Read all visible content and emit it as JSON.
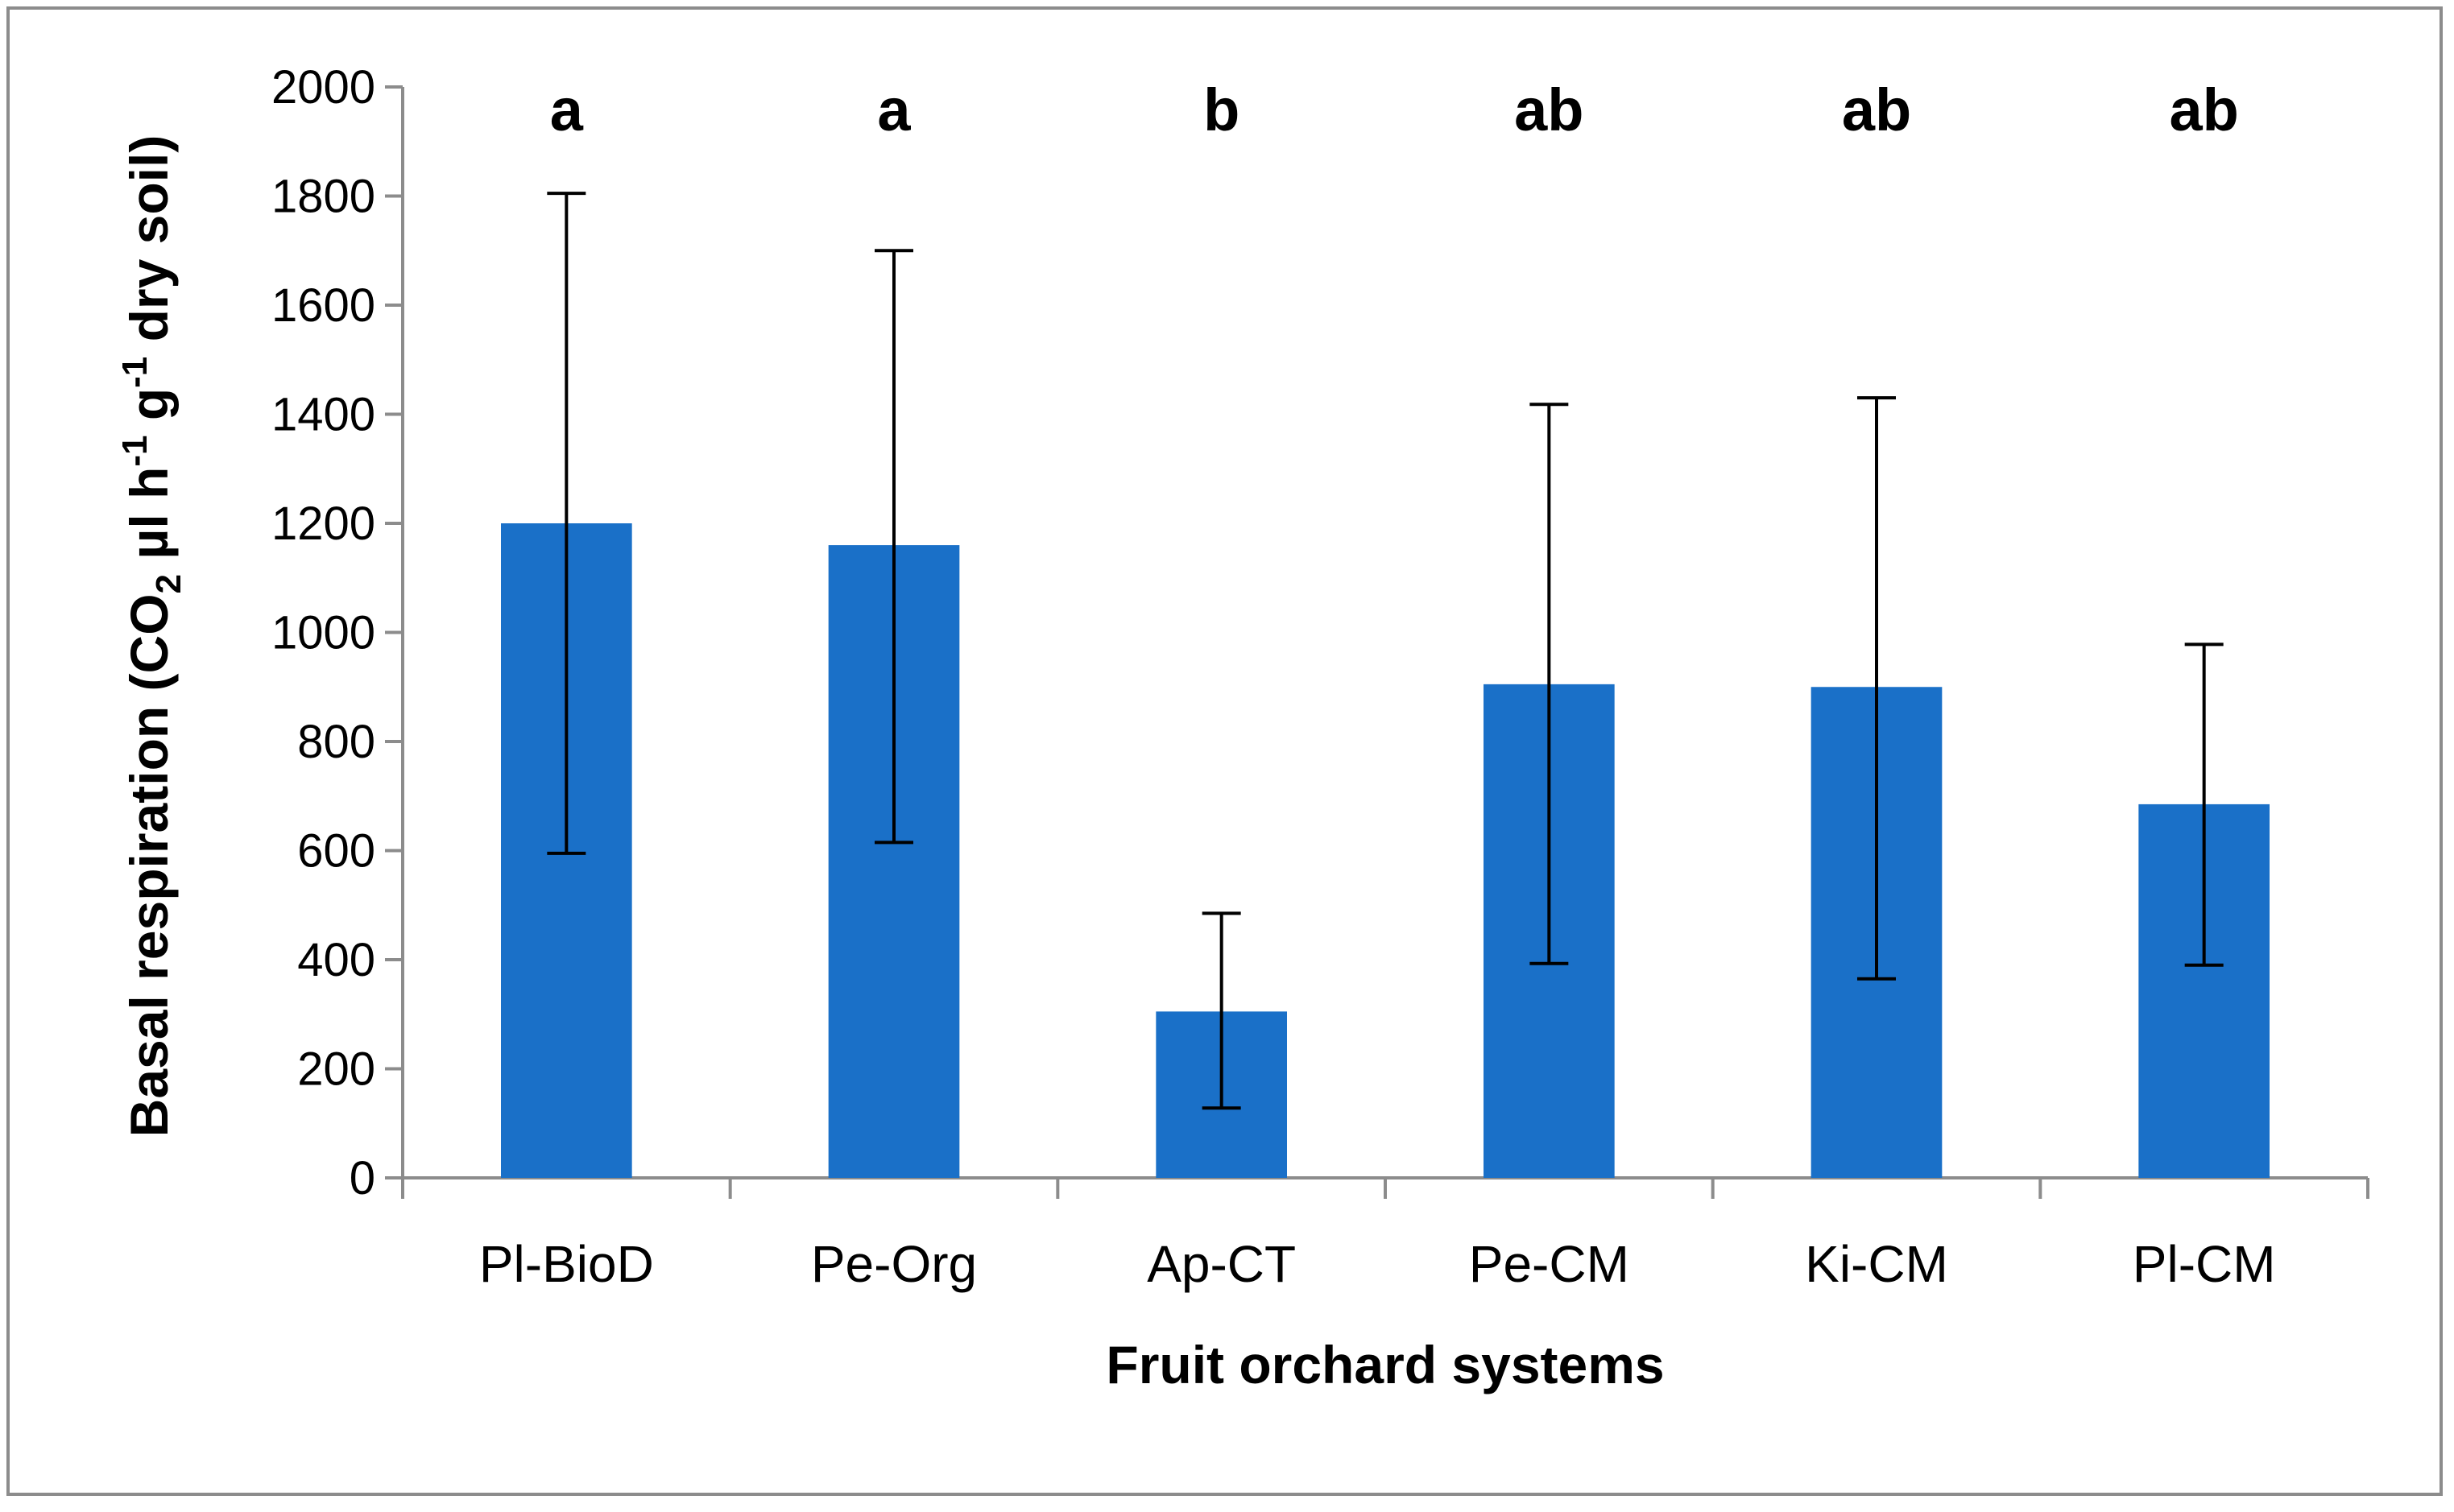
{
  "chart_data": {
    "type": "bar",
    "title": "",
    "xlabel": "Fruit orchard systems",
    "ylabel": {
      "prefix": "Basal respiration (CO",
      "sub": "2",
      "mid1": " µl h",
      "sup1": "-1",
      "mid2": " g",
      "sup2": "-1",
      "suffix": " dry soil)"
    },
    "ylim": [
      0,
      2000
    ],
    "yticks": [
      0,
      200,
      400,
      600,
      800,
      1000,
      1200,
      1400,
      1600,
      1800,
      2000
    ],
    "categories": [
      "Pl-BioD",
      "Pe-Org",
      "Ap-CT",
      "Pe-CM",
      "Ki-CM",
      "Pl-CM"
    ],
    "values": [
      1200,
      1160,
      305,
      905,
      900,
      685
    ],
    "error_low": [
      595,
      615,
      128,
      393,
      365,
      390
    ],
    "error_high": [
      1805,
      1700,
      485,
      1418,
      1430,
      978
    ],
    "significance_letters": [
      "a",
      "a",
      "b",
      "ab",
      "ab",
      "ab"
    ],
    "bar_color": "#1a70c8",
    "grid": false,
    "legend": "none"
  }
}
